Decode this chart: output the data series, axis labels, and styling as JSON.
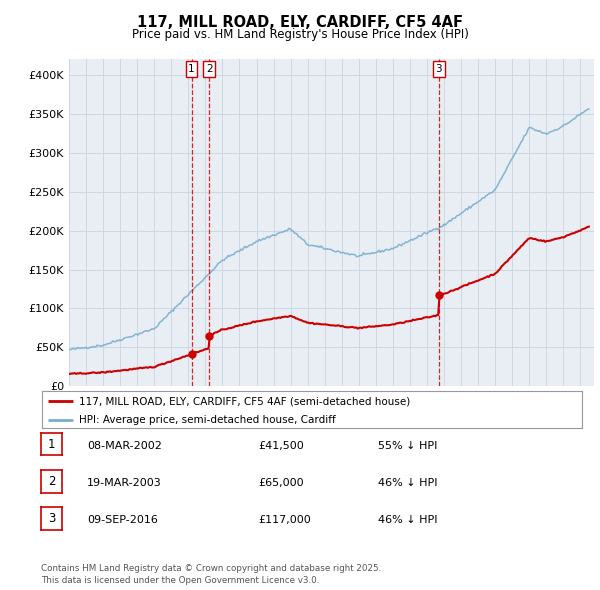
{
  "title": "117, MILL ROAD, ELY, CARDIFF, CF5 4AF",
  "subtitle": "Price paid vs. HM Land Registry's House Price Index (HPI)",
  "legend_line1": "117, MILL ROAD, ELY, CARDIFF, CF5 4AF (semi-detached house)",
  "legend_line2": "HPI: Average price, semi-detached house, Cardiff",
  "footnote": "Contains HM Land Registry data © Crown copyright and database right 2025.\nThis data is licensed under the Open Government Licence v3.0.",
  "table": [
    {
      "num": "1",
      "date": "08-MAR-2002",
      "price": "£41,500",
      "hpi": "55% ↓ HPI"
    },
    {
      "num": "2",
      "date": "19-MAR-2003",
      "price": "£65,000",
      "hpi": "46% ↓ HPI"
    },
    {
      "num": "3",
      "date": "09-SEP-2016",
      "price": "£117,000",
      "hpi": "46% ↓ HPI"
    }
  ],
  "red_line_color": "#cc0000",
  "blue_line_color": "#7aadcf",
  "vline_color": "#cc0000",
  "grid_color": "#c8d4e0",
  "background_color": "#ffffff",
  "plot_bg_color": "#e8eef4",
  "price_paid_events": [
    {
      "year": 2002.19,
      "price": 41500
    },
    {
      "year": 2003.22,
      "price": 65000
    },
    {
      "year": 2016.69,
      "price": 117000
    }
  ],
  "vline_years": [
    2002.19,
    2003.22,
    2016.69
  ],
  "vline_labels": [
    "1",
    "2",
    "3"
  ],
  "ylim": [
    0,
    420000
  ],
  "yticks": [
    0,
    50000,
    100000,
    150000,
    200000,
    250000,
    300000,
    350000,
    400000
  ]
}
